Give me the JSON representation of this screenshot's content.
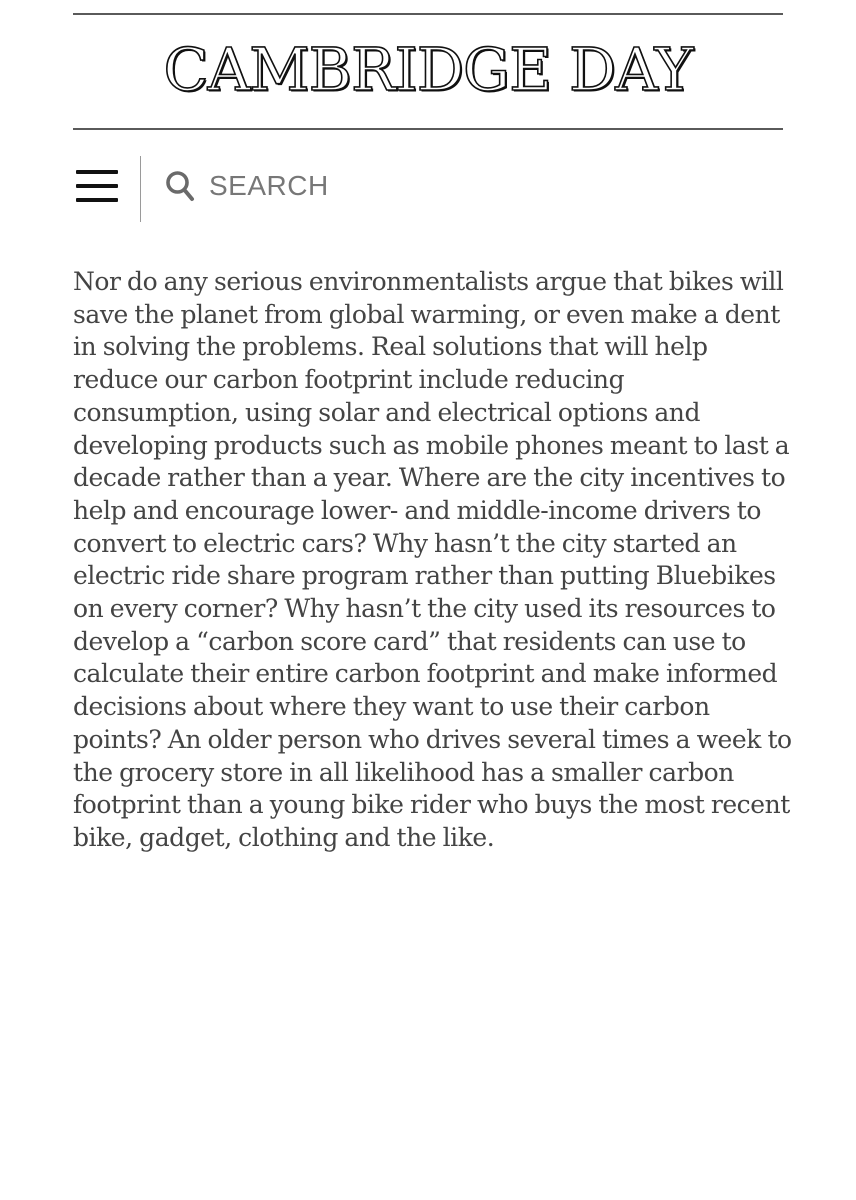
{
  "masthead": {
    "title": "CAMBRIDGE DAY"
  },
  "nav": {
    "menu_icon": "hamburger-menu-icon",
    "search_icon": "search-icon",
    "search_label": "SEARCH"
  },
  "article": {
    "paragraph": "Nor do any serious environmentalists argue that bikes will save the planet from global warming, or even make a dent in solving the problems. Real solutions that will help reduce our carbon footprint include reducing consumption, using solar and electrical options and developing products such as mobile phones meant to last a decade rather than a year. Where are the city incentives to help and encourage lower- and middle-income drivers to convert to electric cars? Why hasn’t the city started an electric ride share program rather than putting Bluebikes on every corner? Why hasn’t the city used its resources to develop a “carbon score card” that residents can use to calculate their entire carbon footprint and make informed decisions about where they want to use their carbon points? An older person who drives several times a week to the grocery store in all likelihood has a smaller carbon footprint than a young bike rider who buys the most recent bike, gadget, clothing and the like."
  },
  "colors": {
    "text": "#444444",
    "rule": "#5a5a5a",
    "search_text": "#777777"
  }
}
